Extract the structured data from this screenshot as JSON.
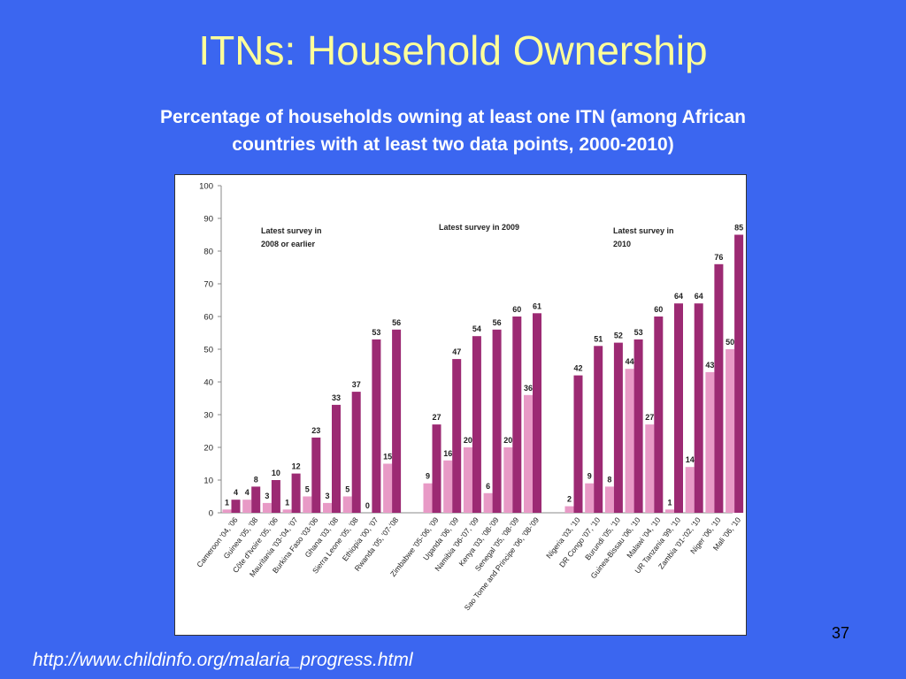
{
  "slide": {
    "title": "ITNs: Household Ownership",
    "subtitle_line1": "Percentage of households owning at least one ITN (among African",
    "subtitle_line2": "countries with at least two data points, 2000-2010)",
    "page_number": "37",
    "source_url": "http://www.childinfo.org/malaria_progress.html"
  },
  "colors": {
    "background": "#3b66f0",
    "title": "#ffff99",
    "latest_survey_bar": "#9c2a73",
    "earlier_survey_bar": "#e89ac6"
  },
  "chart_data": {
    "type": "bar",
    "title": "",
    "xlabel": "",
    "ylabel": "",
    "ylim": [
      0,
      100
    ],
    "yticks": [
      "0",
      "10",
      "20",
      "30",
      "40",
      "50",
      "60",
      "70",
      "80",
      "90",
      "100"
    ],
    "grid": false,
    "legend": "none",
    "annotations": [
      {
        "line1": "Latest survey in",
        "line2": "2008 or earlier"
      },
      {
        "line1": "Latest survey in 2009",
        "line2": ""
      },
      {
        "line1": "Latest survey in",
        "line2": "2010"
      }
    ],
    "groups": [
      {
        "name": "Latest survey in 2008 or earlier",
        "categories": [
          "Cameroon '04, '06",
          "Guinea '05, '08",
          "Côte d'Ivoire '05, '06",
          "Mauritania '03-'04, '07",
          "Burkina Faso '03-'06",
          "Ghana '03, '08",
          "Sierra Leone '05, '08",
          "Ethiopia '00, '07",
          "Rwanda '05, '07-'08"
        ],
        "earlier": [
          1,
          4,
          3,
          1,
          5,
          3,
          5,
          0,
          15
        ],
        "latest": [
          4,
          8,
          10,
          12,
          23,
          33,
          37,
          53,
          56
        ]
      },
      {
        "name": "Latest survey in 2009",
        "categories": [
          "Zimbabwe '05-'06, '09",
          "Uganda '06, '09",
          "Namibia '06-'07, '09",
          "Kenya '03, '08-'09",
          "Senegal '05, '08-'09",
          "Sao Tome and Principe '06, '08-'09"
        ],
        "earlier": [
          9,
          16,
          20,
          6,
          20,
          36
        ],
        "latest": [
          27,
          47,
          54,
          56,
          60,
          61
        ]
      },
      {
        "name": "Latest survey in 2010",
        "categories": [
          "Nigeria '03, '10",
          "DR Congo '07, '10",
          "Burundi '05, '10",
          "Guinea-Bissau '06, '10",
          "Malawi '04, '10",
          "UR Tanzania '99, '10",
          "Zambia '01-'02, '10",
          "Niger '06, '10",
          "Mali '06, '10"
        ],
        "earlier": [
          2,
          9,
          8,
          44,
          27,
          1,
          14,
          43,
          50
        ],
        "latest": [
          42,
          51,
          52,
          53,
          60,
          64,
          64,
          76,
          85
        ]
      }
    ]
  }
}
